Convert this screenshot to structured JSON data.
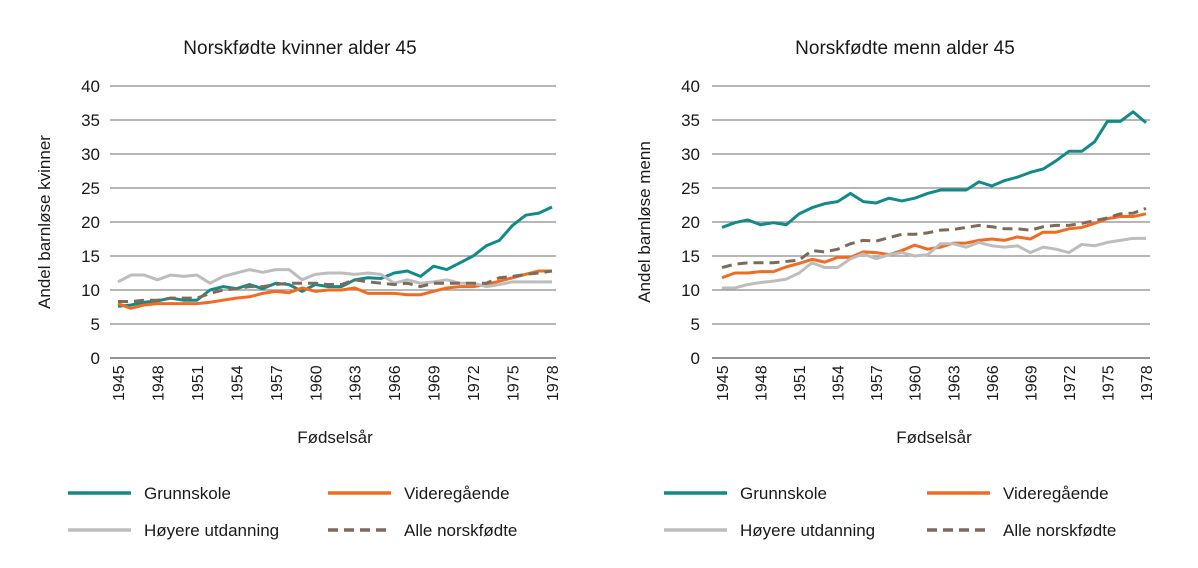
{
  "colors": {
    "Grunnskole": "#138a8a",
    "Videregående": "#f26b21",
    "Høyere utdanning": "#bdbdbd",
    "Alle norskfødte": "#7d6b5a"
  },
  "chart_data": [
    {
      "type": "line",
      "title": "Norskfødte kvinner alder 45",
      "xlabel": "Fødselsår",
      "ylabel": "Andel barnløse kvinner",
      "xlim": [
        1945,
        1978
      ],
      "ylim": [
        0,
        40
      ],
      "yticks": [
        0,
        5,
        10,
        15,
        20,
        25,
        30,
        35,
        40
      ],
      "xticks": [
        1945,
        1948,
        1951,
        1954,
        1957,
        1960,
        1963,
        1966,
        1969,
        1972,
        1975,
        1978
      ],
      "grid": true,
      "legend": "bottom",
      "series": [
        {
          "name": "Grunnskole",
          "style": "solid",
          "values": [
            7.6,
            7.8,
            8.2,
            8.4,
            8.8,
            8.5,
            8.5,
            10,
            10.5,
            10.2,
            10.8,
            10.2,
            11,
            10.8,
            9.8,
            10.8,
            10.5,
            10.5,
            11.5,
            11.8,
            11.7,
            12.5,
            12.8,
            12,
            13.5,
            13,
            14,
            15,
            16.5,
            17.3,
            19.5,
            21,
            21.3,
            22.2
          ]
        },
        {
          "name": "Videregående",
          "style": "solid",
          "values": [
            8,
            7.3,
            7.8,
            8,
            8,
            8,
            8,
            8.2,
            8.5,
            8.8,
            9,
            9.5,
            9.8,
            9.6,
            10.3,
            9.8,
            10,
            10,
            10.3,
            9.5,
            9.5,
            9.5,
            9.3,
            9.3,
            9.8,
            10.3,
            10.5,
            10.5,
            10.8,
            11.3,
            11.8,
            12.3,
            12.8,
            12.8
          ]
        },
        {
          "name": "Høyere utdanning",
          "style": "solid",
          "values": [
            11.2,
            12.2,
            12.2,
            11.5,
            12.2,
            12,
            12.2,
            11,
            12,
            12.5,
            13,
            12.6,
            13,
            13,
            11.5,
            12.3,
            12.5,
            12.5,
            12.3,
            12.5,
            12.3,
            11,
            11.5,
            11,
            11.2,
            11.5,
            11,
            11,
            10.5,
            10.8,
            11.2,
            11.2,
            11.2,
            11.2
          ]
        },
        {
          "name": "Alle norskfødte",
          "style": "dashed",
          "values": [
            8.3,
            8.3,
            8.5,
            8.5,
            8.8,
            8.8,
            8.8,
            9.5,
            10,
            10.2,
            10.5,
            10.5,
            10.8,
            11,
            11,
            11,
            10.8,
            10.8,
            11.5,
            11.2,
            11,
            10.8,
            11,
            10.5,
            11,
            11,
            11,
            11,
            11,
            11.8,
            12,
            12.3,
            12.5,
            12.8
          ]
        }
      ]
    },
    {
      "type": "line",
      "title": "Norskfødte menn alder 45",
      "xlabel": "Fødselsår",
      "ylabel": "Andel barnløse menn",
      "xlim": [
        1945,
        1978
      ],
      "ylim": [
        0,
        40
      ],
      "yticks": [
        0,
        5,
        10,
        15,
        20,
        25,
        30,
        35,
        40
      ],
      "xticks": [
        1945,
        1948,
        1951,
        1954,
        1957,
        1960,
        1963,
        1966,
        1969,
        1972,
        1975,
        1978
      ],
      "grid": true,
      "legend": "bottom",
      "series": [
        {
          "name": "Grunnskole",
          "style": "solid",
          "values": [
            19.2,
            19.9,
            20.3,
            19.6,
            19.9,
            19.6,
            21.2,
            22.1,
            22.7,
            23,
            24.2,
            23,
            22.8,
            23.5,
            23.1,
            23.5,
            24.2,
            24.7,
            24.7,
            24.7,
            25.9,
            25.3,
            26.1,
            26.6,
            27.3,
            27.8,
            29,
            30.4,
            30.4,
            31.8,
            34.8,
            34.8,
            36.2,
            34.6
          ]
        },
        {
          "name": "Videregående",
          "style": "solid",
          "values": [
            11.8,
            12.5,
            12.5,
            12.7,
            12.7,
            13.4,
            13.9,
            14.5,
            14.1,
            14.8,
            14.8,
            15.6,
            15.5,
            15.2,
            15.8,
            16.6,
            16,
            16.3,
            16.9,
            16.9,
            17.3,
            17.5,
            17.3,
            17.8,
            17.5,
            18.5,
            18.5,
            19,
            19.2,
            19.8,
            20.5,
            20.8,
            20.8,
            21.2
          ]
        },
        {
          "name": "Høyere utdanning",
          "style": "solid",
          "values": [
            10.3,
            10.3,
            10.8,
            11.1,
            11.3,
            11.6,
            12.5,
            14,
            13.3,
            13.3,
            14.6,
            15.3,
            14.6,
            15.2,
            15.5,
            15,
            15.2,
            16.8,
            16.8,
            16.3,
            17,
            16.5,
            16.3,
            16.5,
            15.5,
            16.3,
            16,
            15.5,
            16.7,
            16.5,
            17,
            17.3,
            17.6,
            17.6
          ]
        },
        {
          "name": "Alle norskfødte",
          "style": "dashed",
          "values": [
            13.3,
            13.8,
            14,
            14,
            14,
            14.2,
            14.4,
            15.8,
            15.6,
            16,
            16.8,
            17.3,
            17.2,
            17.7,
            18.2,
            18.2,
            18.4,
            18.8,
            18.9,
            19.2,
            19.5,
            19.3,
            19,
            19,
            18.8,
            19.3,
            19.5,
            19.5,
            19.8,
            20.2,
            20.6,
            21.2,
            21.3,
            22
          ]
        }
      ]
    }
  ]
}
